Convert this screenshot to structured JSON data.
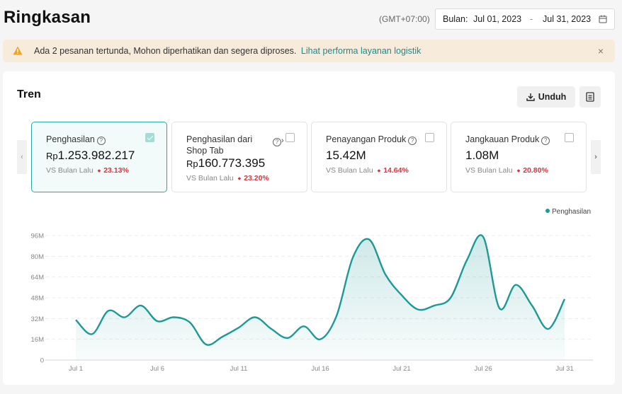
{
  "header": {
    "title": "Ringkasan",
    "timezone": "(GMT+07:00)",
    "date_label": "Bulan:",
    "date_start": "Jul 01, 2023",
    "date_sep": "-",
    "date_end": "Jul 31, 2023"
  },
  "banner": {
    "text": "Ada 2 pesanan tertunda, Mohon diperhatikan dan segera diproses.",
    "link": "Lihat performa layanan logistik",
    "close": "×"
  },
  "trend": {
    "title": "Tren",
    "download_label": "Unduh",
    "prev_arrow": "‹",
    "next_arrow": "›",
    "metrics": [
      {
        "label": "Penghasilan",
        "currency": "Rp",
        "value": "1.253.982.217",
        "compare": "VS Bulan Lalu",
        "change": "23.13%",
        "checked": true
      },
      {
        "label_line1": "Penghasilan dari",
        "label_line2": "Shop Tab",
        "currency": "Rp",
        "value": "160.773.395",
        "compare": "VS Bulan Lalu",
        "change": "23.20%",
        "checked": false
      },
      {
        "label": "Penayangan Produk",
        "value": "15.42M",
        "compare": "VS Bulan Lalu",
        "change": "14.64%",
        "checked": false
      },
      {
        "label": "Jangkauan Produk",
        "value": "1.08M",
        "compare": "VS Bulan Lalu",
        "change": "20.80%",
        "checked": false
      }
    ],
    "legend": "Penghasilan"
  },
  "colors": {
    "accent": "#1e9a96",
    "negative": "#d8343e",
    "banner_bg": "#f7ecdc",
    "warning": "#f0a32b"
  },
  "chart_data": {
    "type": "area",
    "series": [
      {
        "name": "Penghasilan",
        "x": [
          "Jul 1",
          "Jul 2",
          "Jul 3",
          "Jul 4",
          "Jul 5",
          "Jul 6",
          "Jul 7",
          "Jul 8",
          "Jul 9",
          "Jul 10",
          "Jul 11",
          "Jul 12",
          "Jul 13",
          "Jul 14",
          "Jul 15",
          "Jul 16",
          "Jul 17",
          "Jul 18",
          "Jul 19",
          "Jul 20",
          "Jul 21",
          "Jul 22",
          "Jul 23",
          "Jul 24",
          "Jul 25",
          "Jul 26",
          "Jul 27",
          "Jul 28",
          "Jul 29",
          "Jul 30",
          "Jul 31"
        ],
        "values": [
          31,
          20,
          38,
          33,
          42,
          30,
          33,
          29,
          12,
          18,
          25,
          33,
          24,
          17,
          26,
          16,
          34,
          79,
          93,
          66,
          50,
          39,
          42,
          48,
          77,
          95,
          40,
          58,
          42,
          24,
          47
        ]
      }
    ],
    "x_tick_labels": [
      "Jul 1",
      "Jul 6",
      "Jul 11",
      "Jul 16",
      "Jul 21",
      "Jul 26",
      "Jul 31"
    ],
    "y_tick_labels": [
      "0",
      "16M",
      "32M",
      "48M",
      "64M",
      "80M",
      "96M"
    ],
    "ylim": [
      0,
      96
    ],
    "y_unit": "M",
    "grid": true,
    "legend_position": "top-right"
  }
}
